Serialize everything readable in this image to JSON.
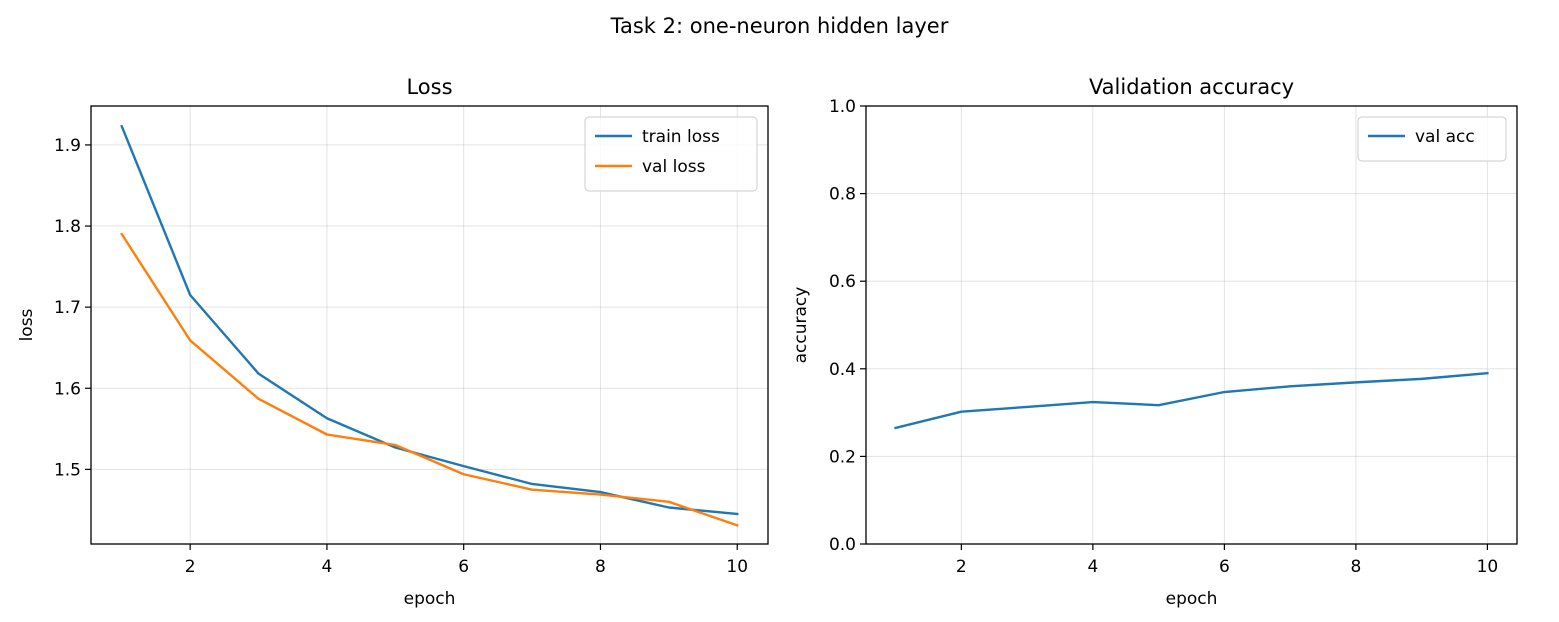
{
  "figure": {
    "title": "Task 2: one-neuron hidden layer"
  },
  "chart_data": [
    {
      "type": "line",
      "title": "Loss",
      "xlabel": "epoch",
      "ylabel": "loss",
      "xlim": [
        0.55,
        10.45
      ],
      "ylim": [
        1.408,
        1.948
      ],
      "xticks": [
        2,
        4,
        6,
        8,
        10
      ],
      "xtick_labels": [
        "2",
        "4",
        "6",
        "8",
        "10"
      ],
      "yticks": [
        1.5,
        1.6,
        1.7,
        1.8,
        1.9
      ],
      "ytick_labels": [
        "1.5",
        "1.6",
        "1.7",
        "1.8",
        "1.9"
      ],
      "grid": true,
      "legend": "top-right",
      "x": [
        1,
        2,
        3,
        4,
        5,
        6,
        7,
        8,
        9,
        10
      ],
      "series": [
        {
          "name": "train loss",
          "color": "#1f77b4",
          "values": [
            1.923,
            1.715,
            1.618,
            1.563,
            1.527,
            1.504,
            1.482,
            1.472,
            1.453,
            1.445
          ]
        },
        {
          "name": "val loss",
          "color": "#ff7f0e",
          "values": [
            1.79,
            1.659,
            1.587,
            1.543,
            1.53,
            1.494,
            1.475,
            1.469,
            1.46,
            1.431
          ]
        }
      ]
    },
    {
      "type": "line",
      "title": "Validation accuracy",
      "xlabel": "epoch",
      "ylabel": "accuracy",
      "xlim": [
        0.55,
        10.45
      ],
      "ylim": [
        0,
        1
      ],
      "xticks": [
        2,
        4,
        6,
        8,
        10
      ],
      "xtick_labels": [
        "2",
        "4",
        "6",
        "8",
        "10"
      ],
      "yticks": [
        0,
        0.2,
        0.4,
        0.6,
        0.8,
        1.0
      ],
      "ytick_labels": [
        "0.0",
        "0.2",
        "0.4",
        "0.6",
        "0.8",
        "1.0"
      ],
      "grid": true,
      "legend": "top-right",
      "x": [
        1,
        2,
        3,
        4,
        5,
        6,
        7,
        8,
        9,
        10
      ],
      "series": [
        {
          "name": "val acc",
          "color": "#1f77b4",
          "values": [
            0.265,
            0.302,
            0.313,
            0.324,
            0.317,
            0.347,
            0.36,
            0.369,
            0.377,
            0.39
          ]
        }
      ]
    }
  ]
}
